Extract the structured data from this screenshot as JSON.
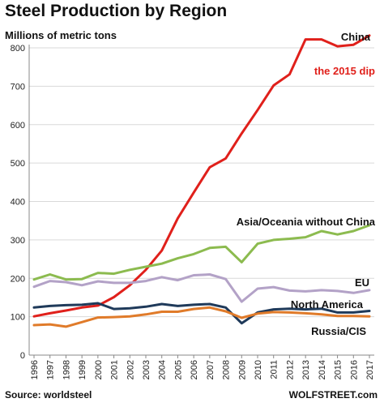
{
  "chart_data": {
    "type": "line",
    "title": "Steel Production by Region",
    "ylabel": "Millions of metric tons",
    "xlabel": "",
    "ylim": [
      0,
      800
    ],
    "yticks": [
      0,
      100,
      200,
      300,
      400,
      500,
      600,
      700,
      800
    ],
    "grid": true,
    "x": [
      "1996",
      "1997",
      "1998",
      "1999",
      "2000",
      "2001",
      "2002",
      "2003",
      "2004",
      "2005",
      "2006",
      "2007",
      "2008",
      "2009",
      "2010",
      "2011",
      "2012",
      "2013",
      "2014",
      "2015",
      "2016",
      "2017"
    ],
    "series": [
      {
        "name": "China",
        "color": "#e0201b",
        "values": [
          101,
          109,
          116,
          124,
          129,
          151,
          182,
          222,
          272,
          356,
          423,
          489,
          512,
          577,
          638,
          702,
          731,
          822,
          822,
          804,
          808,
          832
        ]
      },
      {
        "name": "Asia/Oceania without China",
        "color": "#8cbb4f",
        "values": [
          197,
          210,
          197,
          198,
          214,
          212,
          222,
          230,
          238,
          252,
          263,
          279,
          282,
          242,
          290,
          300,
          303,
          307,
          323,
          314,
          323,
          338
        ]
      },
      {
        "name": "EU",
        "color": "#b3a2c7",
        "values": [
          178,
          193,
          190,
          182,
          192,
          188,
          188,
          193,
          203,
          195,
          208,
          210,
          198,
          139,
          173,
          177,
          168,
          166,
          169,
          167,
          162,
          169
        ]
      },
      {
        "name": "North America",
        "color": "#1f3a5a",
        "values": [
          124,
          128,
          130,
          131,
          135,
          120,
          122,
          126,
          133,
          128,
          131,
          133,
          124,
          83,
          111,
          119,
          121,
          119,
          121,
          111,
          111,
          115
        ]
      },
      {
        "name": "Russia/CIS",
        "color": "#e07b2a",
        "values": [
          78,
          80,
          74,
          86,
          98,
          99,
          101,
          106,
          113,
          113,
          120,
          124,
          114,
          97,
          108,
          112,
          111,
          109,
          106,
          102,
          102,
          101
        ]
      }
    ],
    "annotations": [
      {
        "text": "the 2015 dip",
        "color": "#e0201b"
      }
    ]
  },
  "footer": {
    "source": "Source: worldsteel",
    "brand": "WOLFSTREET.com"
  }
}
